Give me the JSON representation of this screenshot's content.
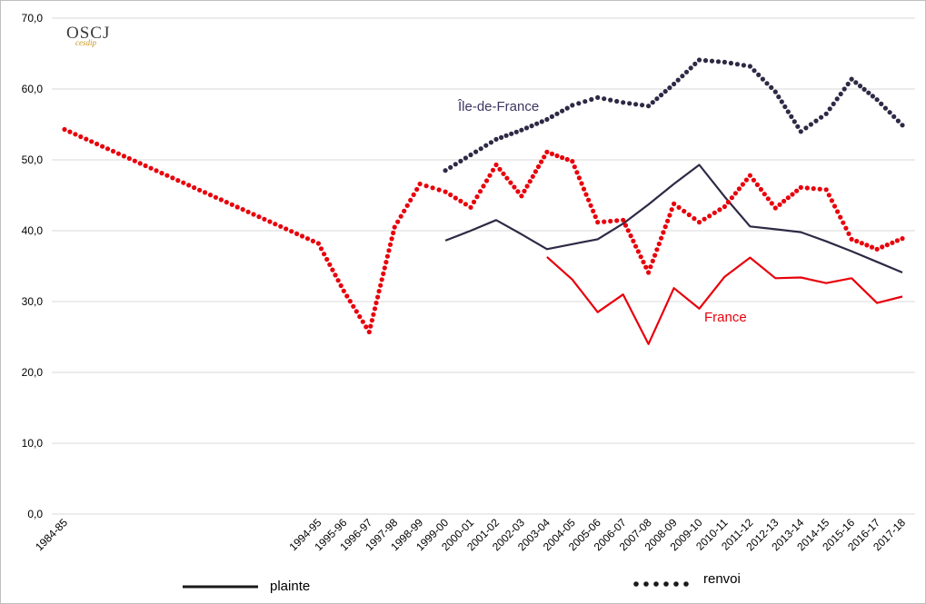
{
  "logo": {
    "main": "OSCJ",
    "sub": "cesdip"
  },
  "chart_data": {
    "type": "line",
    "categories": [
      "1984-85",
      "",
      "",
      "",
      "",
      "",
      "",
      "",
      "",
      "",
      "1994-95",
      "1995-96",
      "1996-97",
      "1997-98",
      "1998-99",
      "1999-00",
      "2000-01",
      "2001-02",
      "2002-03",
      "2003-04",
      "2004-05",
      "2005-06",
      "2006-07",
      "2007-08",
      "2008-09",
      "2009-10",
      "2010-11",
      "2011-12",
      "2012-13",
      "2013-14",
      "2014-15",
      "2015-16",
      "2016-17",
      "2017-18"
    ],
    "ylim": [
      0,
      70
    ],
    "yticks": [
      "0,0",
      "10,0",
      "20,0",
      "30,0",
      "40,0",
      "50,0",
      "60,0",
      "70,0"
    ],
    "series": [
      {
        "group": "Île-de-France",
        "measure": "renvoi",
        "style": "dotted",
        "color": "#2f2945",
        "values": [
          null,
          null,
          null,
          null,
          null,
          null,
          null,
          null,
          null,
          null,
          null,
          null,
          null,
          null,
          null,
          48.5,
          50.7,
          52.9,
          54.2,
          55.7,
          57.7,
          58.8,
          58.1,
          57.6,
          60.7,
          64.1,
          63.8,
          63.2,
          59.6,
          54.0,
          56.5,
          61.4,
          58.5,
          54.9
        ]
      },
      {
        "group": "Île-de-France",
        "measure": "plainte",
        "style": "solid",
        "color": "#2f2945",
        "values": [
          null,
          null,
          null,
          null,
          null,
          null,
          null,
          null,
          null,
          null,
          null,
          null,
          null,
          null,
          null,
          38.6,
          40.0,
          41.5,
          39.5,
          37.4,
          38.1,
          38.8,
          41.0,
          43.7,
          46.6,
          49.3,
          44.8,
          40.6,
          40.2,
          39.8,
          38.5,
          37.1,
          35.6,
          34.1
        ]
      },
      {
        "group": "France",
        "measure": "renvoi",
        "style": "dotted",
        "color": "#e8000b",
        "values": [
          54.3,
          null,
          null,
          null,
          null,
          null,
          null,
          null,
          null,
          null,
          38.2,
          31.5,
          25.7,
          40.5,
          46.6,
          45.5,
          43.3,
          49.3,
          44.9,
          51.1,
          49.8,
          41.2,
          41.5,
          34.1,
          43.8,
          41.2,
          43.4,
          47.8,
          43.2,
          46.1,
          45.8,
          38.8,
          37.4,
          38.9
        ]
      },
      {
        "group": "France",
        "measure": "plainte",
        "style": "solid",
        "color": "#e8000b",
        "values": [
          null,
          null,
          null,
          null,
          null,
          null,
          null,
          null,
          null,
          null,
          null,
          null,
          null,
          null,
          null,
          null,
          null,
          null,
          null,
          36.3,
          33.1,
          28.5,
          31.0,
          24.0,
          31.9,
          29.0,
          33.5,
          36.2,
          33.3,
          33.4,
          32.6,
          33.3,
          29.8,
          30.7
        ]
      }
    ],
    "annotations": [
      {
        "text": "Île-de-France",
        "color": "#3c3660"
      },
      {
        "text": "France",
        "color": "#e8000b"
      }
    ],
    "legend": [
      {
        "label": "plainte",
        "style": "solid",
        "color": "#1a1a1a"
      },
      {
        "label": "renvoi",
        "style": "dotted",
        "color": "#1a1a1a"
      }
    ],
    "grid": true,
    "legend_position": "bottom"
  }
}
